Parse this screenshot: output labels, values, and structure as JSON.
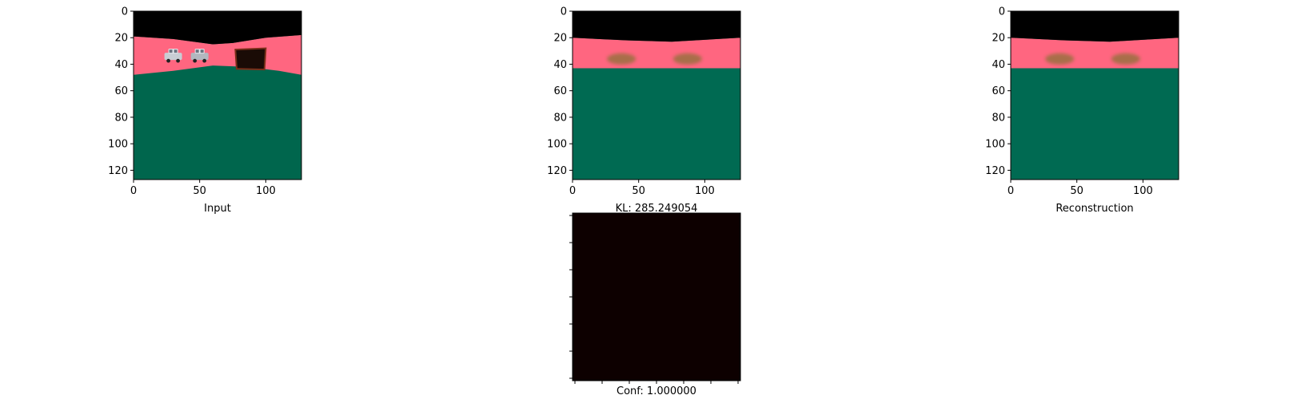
{
  "chart_data": [
    {
      "type": "image",
      "xlabel": "Input",
      "x_ticks": [
        0,
        50,
        100
      ],
      "y_ticks": [
        0,
        20,
        40,
        60,
        80,
        100,
        120
      ],
      "xlim": [
        0,
        127
      ],
      "ylim": [
        127,
        0
      ],
      "content": {
        "sky": {
          "color": "#000000"
        },
        "road": {
          "color": "#ff6680",
          "boundary_top": [
            [
              0,
              19
            ],
            [
              30,
              21
            ],
            [
              60,
              25
            ],
            [
              75,
              24
            ],
            [
              100,
              20
            ],
            [
              127,
              18
            ]
          ],
          "boundary_bottom": [
            [
              0,
              48
            ],
            [
              30,
              45
            ],
            [
              60,
              41
            ],
            [
              85,
              42
            ],
            [
              110,
              45
            ],
            [
              127,
              48
            ]
          ]
        },
        "ground": {
          "color": "#00664d"
        },
        "cars": [
          {
            "x": 30,
            "y": 35,
            "color": "#c8cdd4"
          },
          {
            "x": 50,
            "y": 35,
            "color": "#b2b7bf"
          }
        ],
        "box": {
          "x0": 77,
          "y0": 28,
          "x1": 100,
          "y1": 44,
          "color": "#1a0b06",
          "edge_color": "#7a2f1a"
        }
      }
    },
    {
      "type": "image",
      "xlabel": "KL: 285.249054",
      "x_ticks": [
        0,
        50,
        100
      ],
      "y_ticks": [
        0,
        20,
        40,
        60,
        80,
        100,
        120
      ],
      "xlim": [
        0,
        127
      ],
      "ylim": [
        127,
        0
      ],
      "content": {
        "sky": {
          "color": "#000000"
        },
        "road": {
          "color": "#ff6680",
          "boundary_top": [
            [
              0,
              20
            ],
            [
              40,
              22
            ],
            [
              75,
              23
            ],
            [
              127,
              20
            ]
          ],
          "boundary_bottom": [
            [
              0,
              43
            ],
            [
              127,
              43
            ]
          ]
        },
        "ground": {
          "color": "#006a52"
        },
        "blobs": [
          {
            "x": 37,
            "y": 36,
            "color": "#9a7040"
          },
          {
            "x": 87,
            "y": 36,
            "color": "#9a7040"
          }
        ]
      }
    },
    {
      "type": "image",
      "xlabel": "Reconstruction",
      "x_ticks": [
        0,
        50,
        100
      ],
      "y_ticks": [
        0,
        20,
        40,
        60,
        80,
        100,
        120
      ],
      "xlim": [
        0,
        127
      ],
      "ylim": [
        127,
        0
      ],
      "content": {
        "sky": {
          "color": "#000000"
        },
        "road": {
          "color": "#ff6680",
          "boundary_top": [
            [
              0,
              20
            ],
            [
              40,
              22
            ],
            [
              75,
              23
            ],
            [
              127,
              20
            ]
          ],
          "boundary_bottom": [
            [
              0,
              43
            ],
            [
              127,
              43
            ]
          ]
        },
        "ground": {
          "color": "#006a52"
        },
        "blobs": [
          {
            "x": 37,
            "y": 36,
            "color": "#9a7040"
          },
          {
            "x": 87,
            "y": 36,
            "color": "#9a7040"
          }
        ]
      }
    },
    {
      "type": "heatmap",
      "xlabel": "Conf: 1.000000",
      "x_ticks_labeled": false,
      "y_ticks_labeled": false,
      "fill_color": "#0d0000"
    }
  ]
}
